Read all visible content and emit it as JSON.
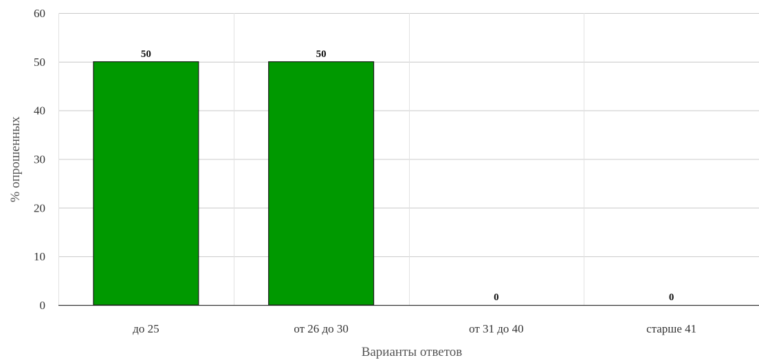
{
  "chart_data": {
    "type": "bar",
    "title": "",
    "xlabel": "Варианты ответов",
    "ylabel": "% опрошенных",
    "categories": [
      "до 25",
      "от 26 до 30",
      "от 31 до 40",
      "старше 41"
    ],
    "values": [
      50,
      50,
      0,
      0
    ],
    "data_labels": [
      "50",
      "50",
      "0",
      "0"
    ],
    "ylim": [
      0,
      60
    ],
    "yticks": [
      0,
      10,
      20,
      30,
      40,
      50,
      60
    ],
    "grid": true,
    "legend": "none",
    "bar_color": "#009900"
  }
}
